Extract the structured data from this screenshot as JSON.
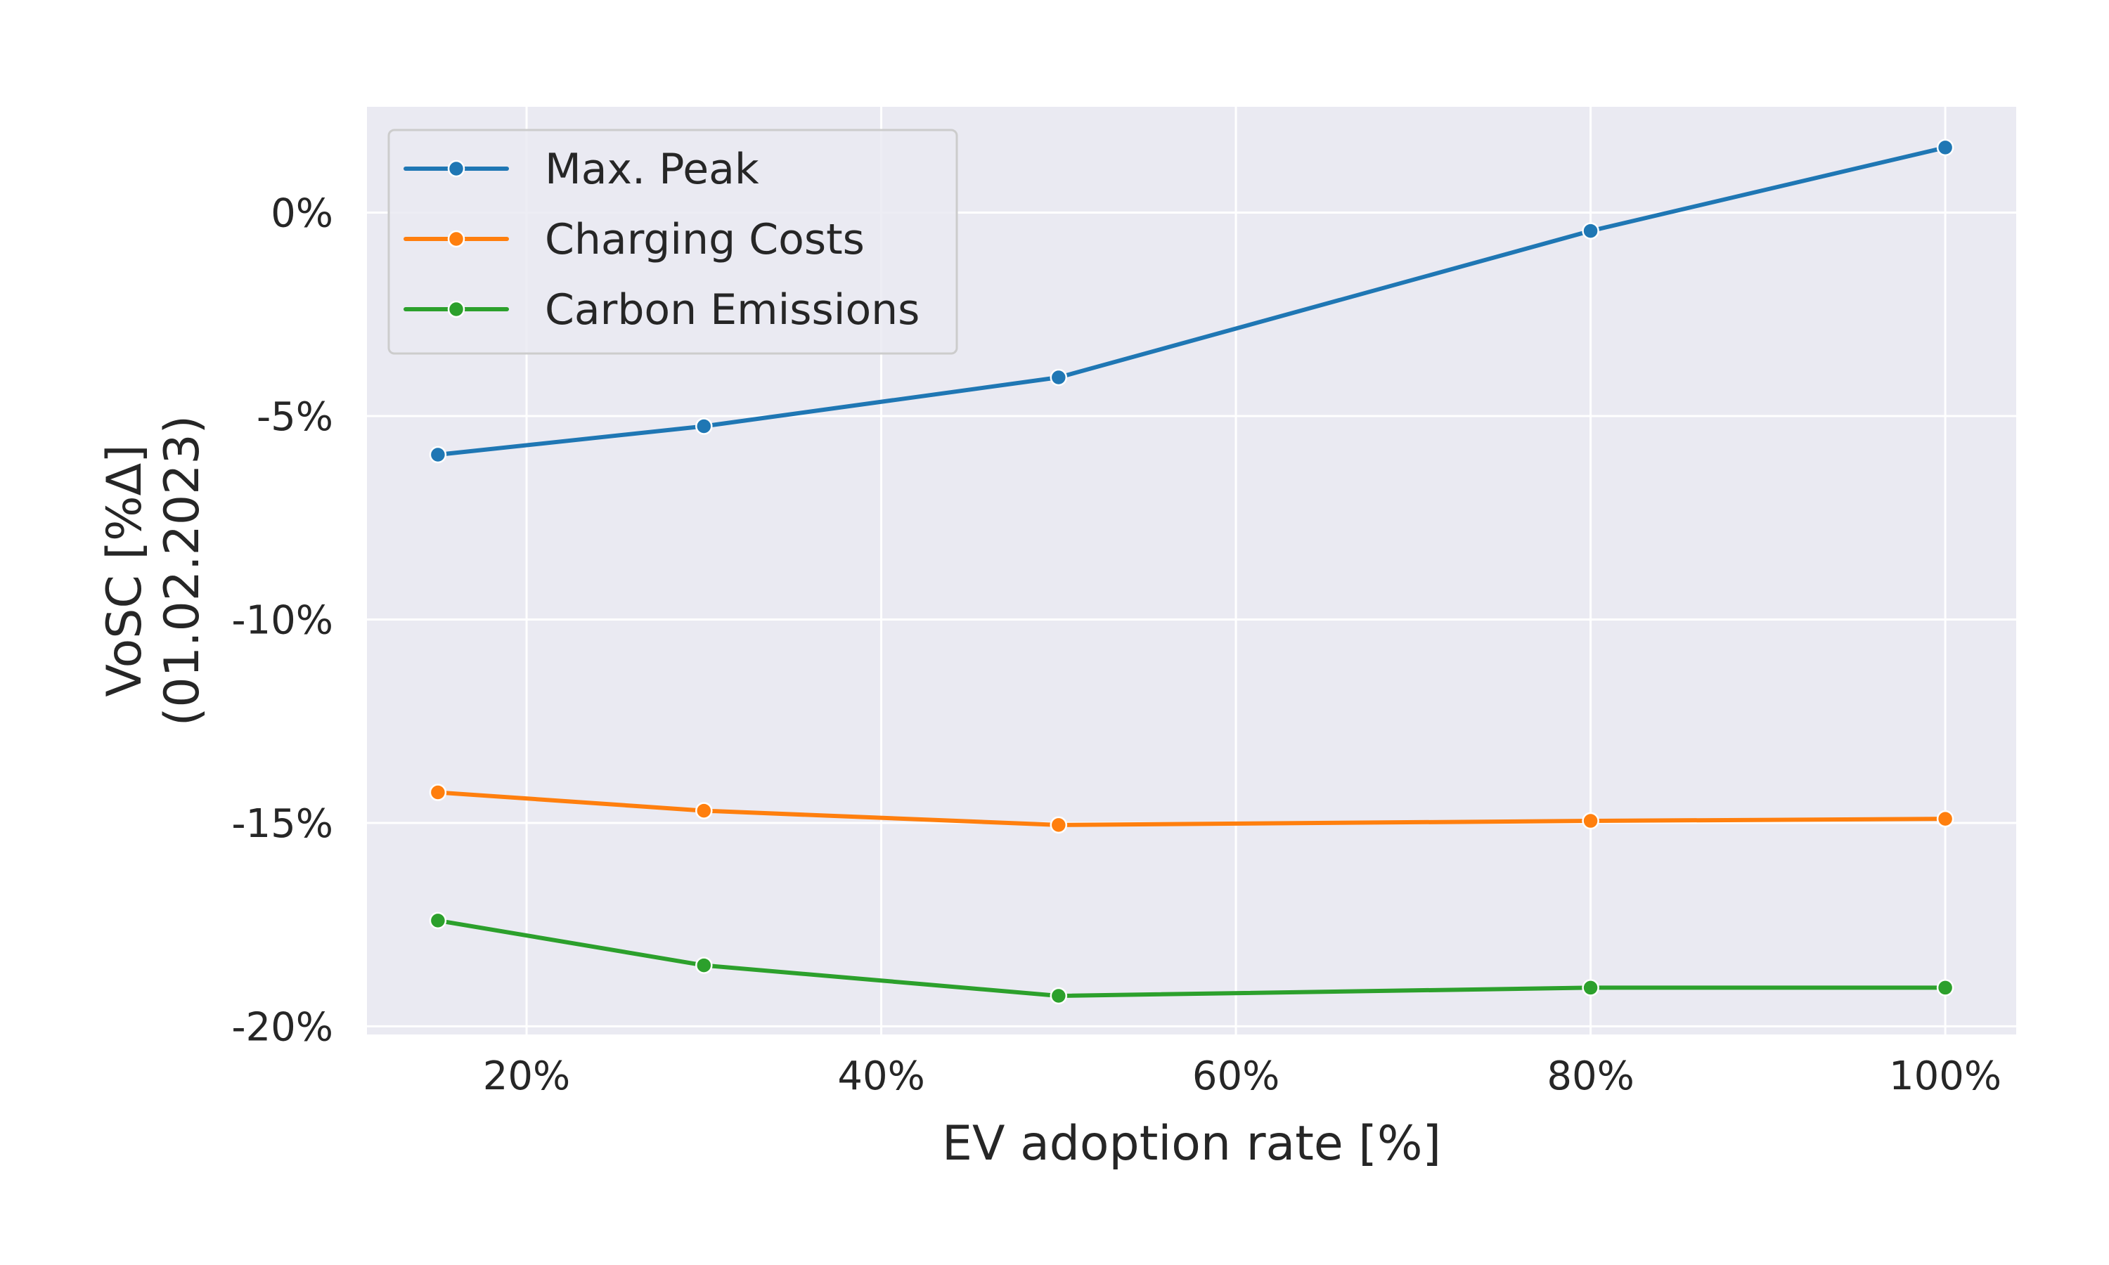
{
  "chart_data": {
    "type": "line",
    "title": "",
    "xlabel": "EV adoption rate [%]",
    "ylabel_lines": [
      "VoSC [%Δ]",
      "(01.02.2023)"
    ],
    "x": [
      15,
      30,
      50,
      80,
      100
    ],
    "xlim": [
      11,
      104
    ],
    "ylim": [
      -20.2,
      2.6
    ],
    "x_ticks": [
      20,
      40,
      60,
      80,
      100
    ],
    "x_tick_labels": [
      "20%",
      "40%",
      "60%",
      "80%",
      "100%"
    ],
    "y_ticks": [
      0,
      -5,
      -10,
      -15,
      -20
    ],
    "y_tick_labels": [
      "0%",
      "-5%",
      "-10%",
      "-15%",
      "-20%"
    ],
    "grid": true,
    "background": "#eaeaf2",
    "legend_position": "top-left",
    "series": [
      {
        "name": "Max. Peak",
        "color": "#1f77b4",
        "values": [
          -5.95,
          -5.25,
          -4.05,
          -0.45,
          1.6
        ]
      },
      {
        "name": "Charging Costs",
        "color": "#ff7f0e",
        "values": [
          -14.25,
          -14.7,
          -15.05,
          -14.95,
          -14.9
        ]
      },
      {
        "name": "Carbon Emissions",
        "color": "#2ca02c",
        "values": [
          -17.4,
          -18.5,
          -19.25,
          -19.05,
          -19.05
        ]
      }
    ]
  }
}
